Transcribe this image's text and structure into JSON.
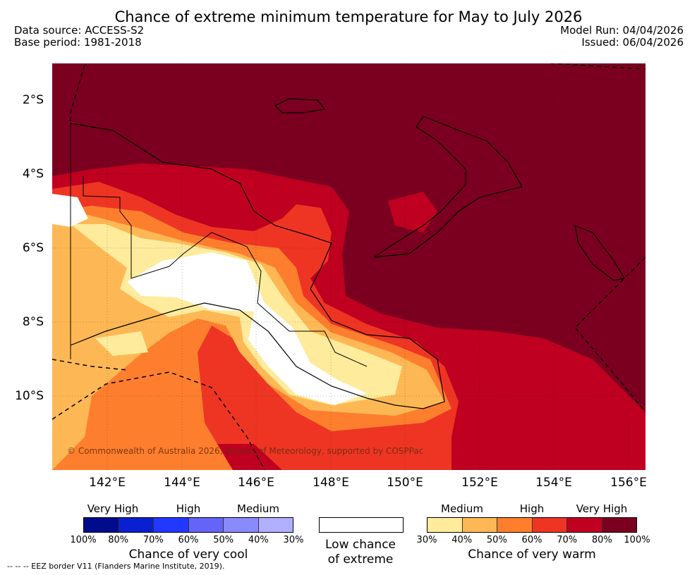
{
  "header": {
    "title": "Chance of extreme minimum temperature for May to July 2026",
    "data_source": "Data source: ACCESS-S2",
    "base_period": "Base period: 1981-2018",
    "model_run": "Model Run: 04/04/2026",
    "issued": "Issued: 06/04/2026"
  },
  "map": {
    "y_ticks": [
      "2°S",
      "4°S",
      "6°S",
      "8°S",
      "10°S"
    ],
    "x_ticks": [
      "142°E",
      "144°E",
      "146°E",
      "148°E",
      "150°E",
      "152°E",
      "154°E",
      "156°E"
    ],
    "copyright": "© Commonwealth of Australia 2026, Bureau of Meteorology, supported by COSPPac"
  },
  "legend": {
    "cool": {
      "headings": [
        "Very High",
        "High",
        "Medium"
      ],
      "percents": [
        "100%",
        "80%",
        "70%",
        "60%",
        "50%",
        "40%",
        "30%"
      ],
      "colors": [
        "#000c8c",
        "#0a1fd0",
        "#2238ff",
        "#6464f8",
        "#8a8aff",
        "#b0b0ff"
      ],
      "title": "Chance of very cool"
    },
    "low": {
      "title_line1": "Low chance",
      "title_line2": "of extreme",
      "color": "#ffffff"
    },
    "warm": {
      "headings": [
        "Medium",
        "High",
        "Very High"
      ],
      "percents": [
        "30%",
        "40%",
        "50%",
        "60%",
        "70%",
        "80%",
        "100%"
      ],
      "colors": [
        "#feeb9c",
        "#fdb855",
        "#fd7f2e",
        "#ee3524",
        "#bf0020",
        "#7b0020"
      ],
      "title": "Chance of very warm"
    },
    "eez_note": "--  --  -- EEZ border V11 (Flanders Marine Institute, 2019)."
  }
}
